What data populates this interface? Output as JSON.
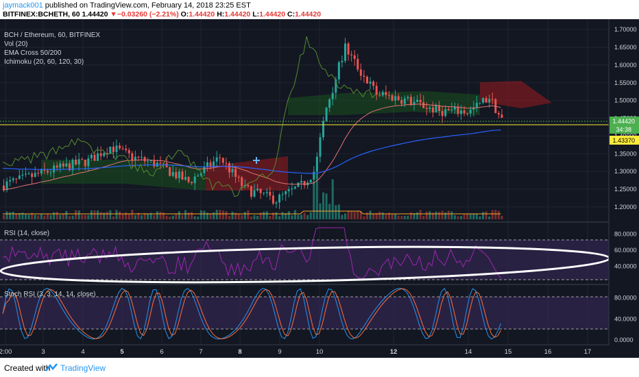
{
  "header": {
    "user": "jaymack001",
    "published": " published on TradingView.com, February 14, 2018 23:25 EST",
    "symbol": "BITFINEX:BCHETH, 60",
    "last": "1.44420",
    "arrow": "▼",
    "change": "−0.03260 (−2.21%)",
    "o_label": "O:",
    "o_value": "1.44420",
    "h_label": "H:",
    "h_value": "1.44420",
    "l_label": "L:",
    "l_value": "1.44420",
    "c_label": "C:",
    "c_value": "1.44420"
  },
  "legend": {
    "title": "BCH / Ethereum, 60, BITFINEX",
    "vol": "Vol (20)",
    "ema": "EMA Cross 50/200",
    "ichimoku": "Ichimoku (20, 60, 120, 30)",
    "rsi": "RSI (14, close)",
    "stoch": "Stoch RSI (3, 3, 14, 14, close)"
  },
  "price_badges": {
    "last": "1.44420",
    "countdown": "34:38",
    "level": "1.43370"
  },
  "footer": {
    "created_with": "Created with",
    "brand": "TradingView"
  },
  "colors": {
    "background": "#131722",
    "up": "#26a69a",
    "down": "#ef5350",
    "cloud_bull": "#1b5e20",
    "cloud_bear": "#b71c1c",
    "rsi": "#9c27b0",
    "rsi_band": "#3d2a5c",
    "stoch_k": "#2196f3",
    "stoch_d": "#ff6f3c",
    "ema_fast": "#2962ff",
    "ema_slow": "#ff6d00",
    "level": "#ffeb3b",
    "last": "#4caf50"
  },
  "chart_data": [
    {
      "type": "candlestick",
      "title": "BCH / Ethereum, 60, BITFINEX",
      "x_ticks": [
        "2:00",
        "3",
        "4",
        "5",
        "6",
        "7",
        "8",
        "9",
        "10",
        "12",
        "14",
        "15",
        "16",
        "17"
      ],
      "y_ticks": [
        "1.70000",
        "1.65000",
        "1.60000",
        "1.55000",
        "1.50000",
        "1.45000",
        "1.40000",
        "1.35000",
        "1.30000",
        "1.25000",
        "1.20000"
      ],
      "ylim": [
        1.165,
        1.71
      ],
      "level_line": 1.4337,
      "last_price": 1.4442,
      "indicators": [
        "Vol (20)",
        "EMA Cross 50/200",
        "Ichimoku (20, 60, 120, 30)"
      ]
    },
    {
      "type": "line",
      "title": "RSI (14, close)",
      "y_ticks": [
        "80.0000",
        "60.0000",
        "40.0000"
      ],
      "ylim": [
        20,
        90
      ],
      "bands": [
        70,
        30
      ]
    },
    {
      "type": "line",
      "title": "Stoch RSI (3, 3, 14, 14, close)",
      "y_ticks": [
        "80.0000",
        "40.0000",
        "0.0000"
      ],
      "ylim": [
        -5,
        100
      ],
      "bands": [
        80,
        20
      ],
      "series": [
        {
          "name": "K"
        },
        {
          "name": "D"
        }
      ]
    }
  ]
}
